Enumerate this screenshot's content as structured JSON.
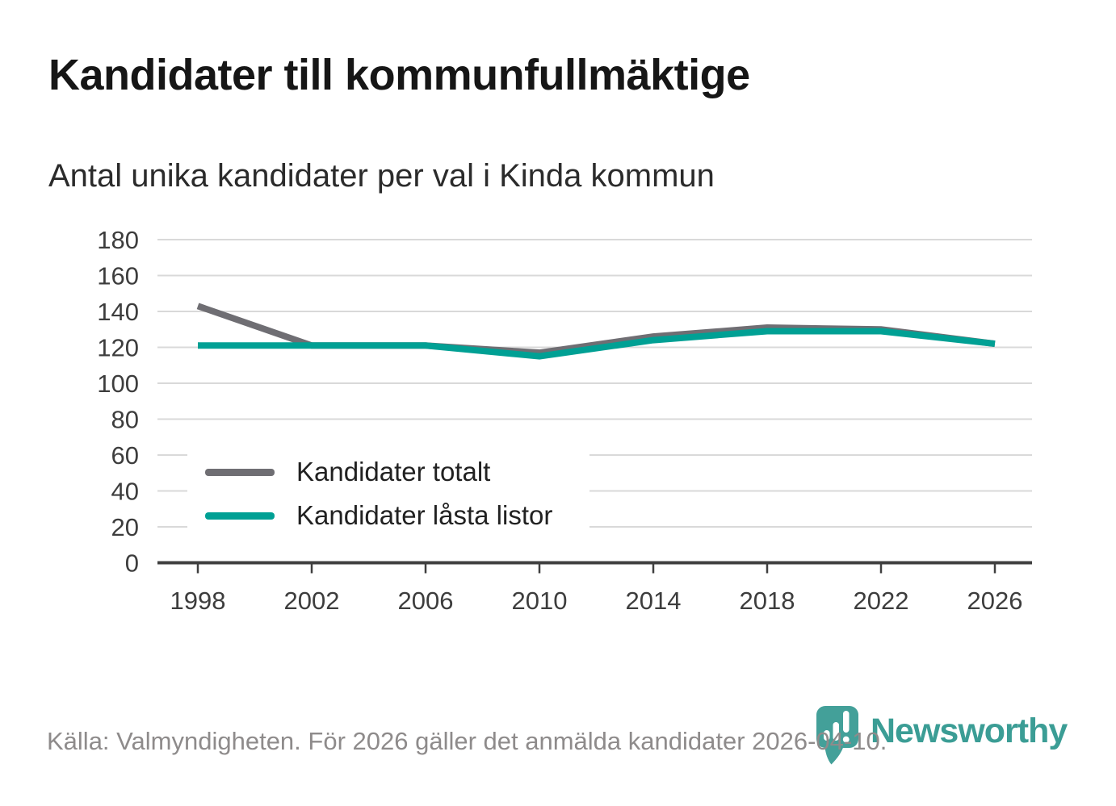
{
  "page": {
    "title": "Kandidater till kommunfullmäktige",
    "subtitle": "Antal unika kandidater per val i Kinda kommun"
  },
  "chart_data": {
    "type": "line",
    "categories": [
      "1998",
      "2002",
      "2006",
      "2010",
      "2014",
      "2018",
      "2022",
      "2026"
    ],
    "series": [
      {
        "name": "Kandidater totalt",
        "color": "#6F6E73",
        "values": [
          143,
          121,
          121,
          117,
          126,
          131,
          130,
          122
        ]
      },
      {
        "name": "Kandidater låsta listor",
        "color": "#00A094",
        "values": [
          121,
          121,
          121,
          115,
          124,
          129,
          129,
          122
        ]
      }
    ],
    "title": "Kandidater till kommunfullmäktige",
    "subtitle": "Antal unika kandidater per val i Kinda kommun",
    "xlabel": "",
    "ylabel": "",
    "ylim": [
      0,
      180
    ],
    "yticks": [
      0,
      20,
      40,
      60,
      80,
      100,
      120,
      140,
      160,
      180
    ],
    "grid": "horizontal",
    "legend_position": "inside-left"
  },
  "footer": {
    "source_text": "Källa: Valmyndigheten. För 2026 gäller det anmälda kandidater 2026-04-10."
  },
  "logo": {
    "text": "Newsworthy",
    "badge_color": "#43A099",
    "text_color": "#3B9D95"
  },
  "colors": {
    "gridline": "#d9d9d9",
    "axis": "#3f3f3f",
    "axis_label": "#3d3d3d"
  }
}
